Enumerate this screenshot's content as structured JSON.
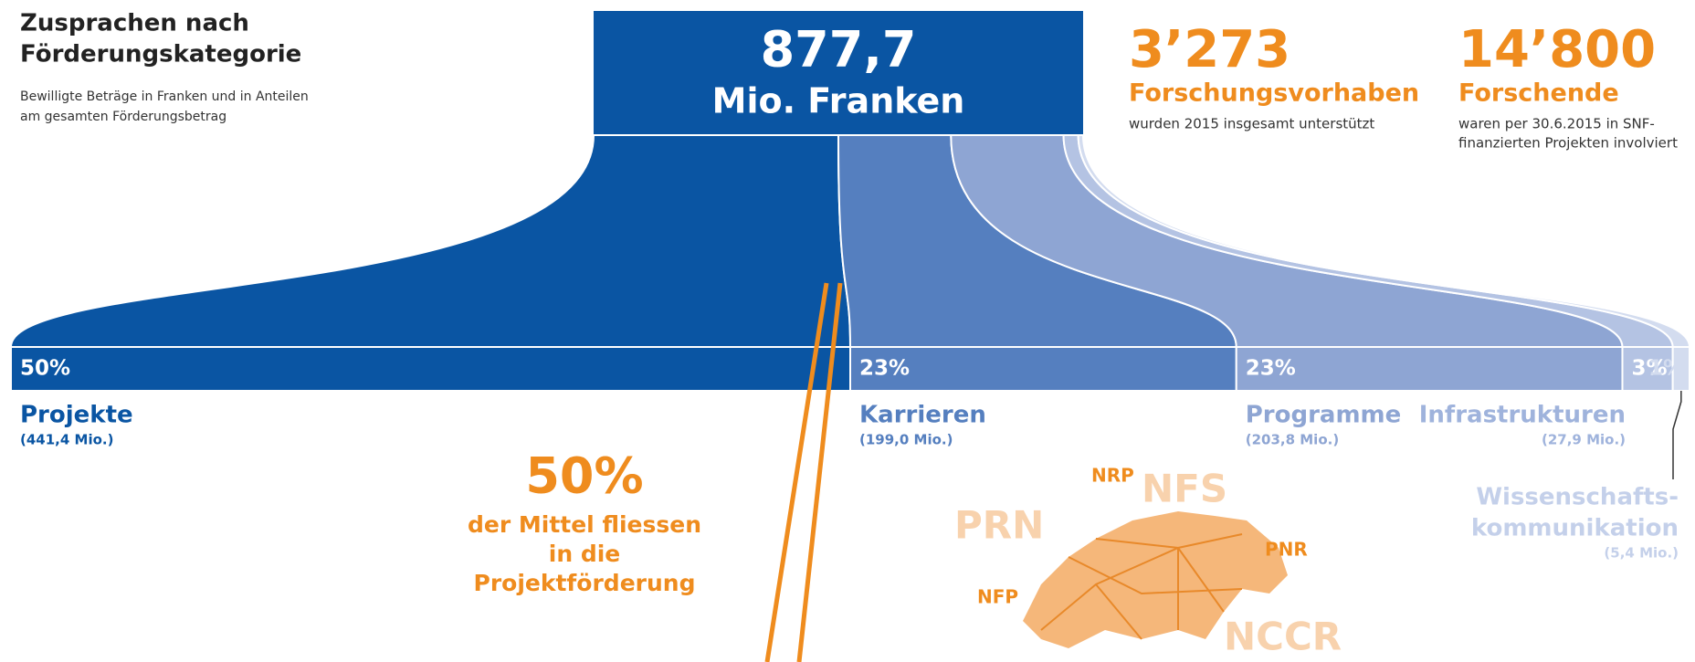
{
  "title": [
    "Zusprachen nach",
    "Förderungskategorie"
  ],
  "subtitle": [
    "Bewilligte Beträge in Franken und in Anteilen",
    "am gesamten Förderungsbetrag"
  ],
  "total": {
    "value": "877,7",
    "unit": "Mio. Franken"
  },
  "stats": [
    {
      "value": "3’273",
      "label": "Forschungsvorhaben",
      "note": [
        "wurden 2015 insgesamt unterstützt"
      ]
    },
    {
      "value": "14’800",
      "label": "Forschende",
      "note": [
        "waren per 30.6.2015 in SNF-",
        "finanzierten Projekten involviert"
      ]
    }
  ],
  "chart_data": {
    "type": "bar",
    "orientation": "horizontal-stacked",
    "categories": [
      [
        "Projekte"
      ],
      [
        "Karrieren"
      ],
      [
        "Programme"
      ],
      [
        "Infrastrukturen"
      ],
      [
        "Wissenschafts-",
        "kommunikation"
      ]
    ],
    "values": [
      50,
      23,
      23,
      3,
      1
    ],
    "value_labels": [
      "50%",
      "23%",
      "23%",
      "3%",
      "1%"
    ],
    "amounts": [
      "(441,4 Mio.)",
      "(199,0 Mio.)",
      "(203,8 Mio.)",
      "(27,9 Mio.)",
      "(5,4 Mio.)"
    ],
    "colors": [
      "#0a55a3",
      "#557fbf",
      "#8ea5d3",
      "#b4c3e3",
      "#d3dcef"
    ],
    "xlim": [
      0,
      100
    ]
  },
  "callout": {
    "value": "50%",
    "text": [
      "der Mittel fliessen",
      "in die",
      "Projektförderung"
    ]
  },
  "map_labels": [
    "NRP",
    "NFS",
    "PRN",
    "PNR",
    "NFP",
    "NCCR"
  ]
}
